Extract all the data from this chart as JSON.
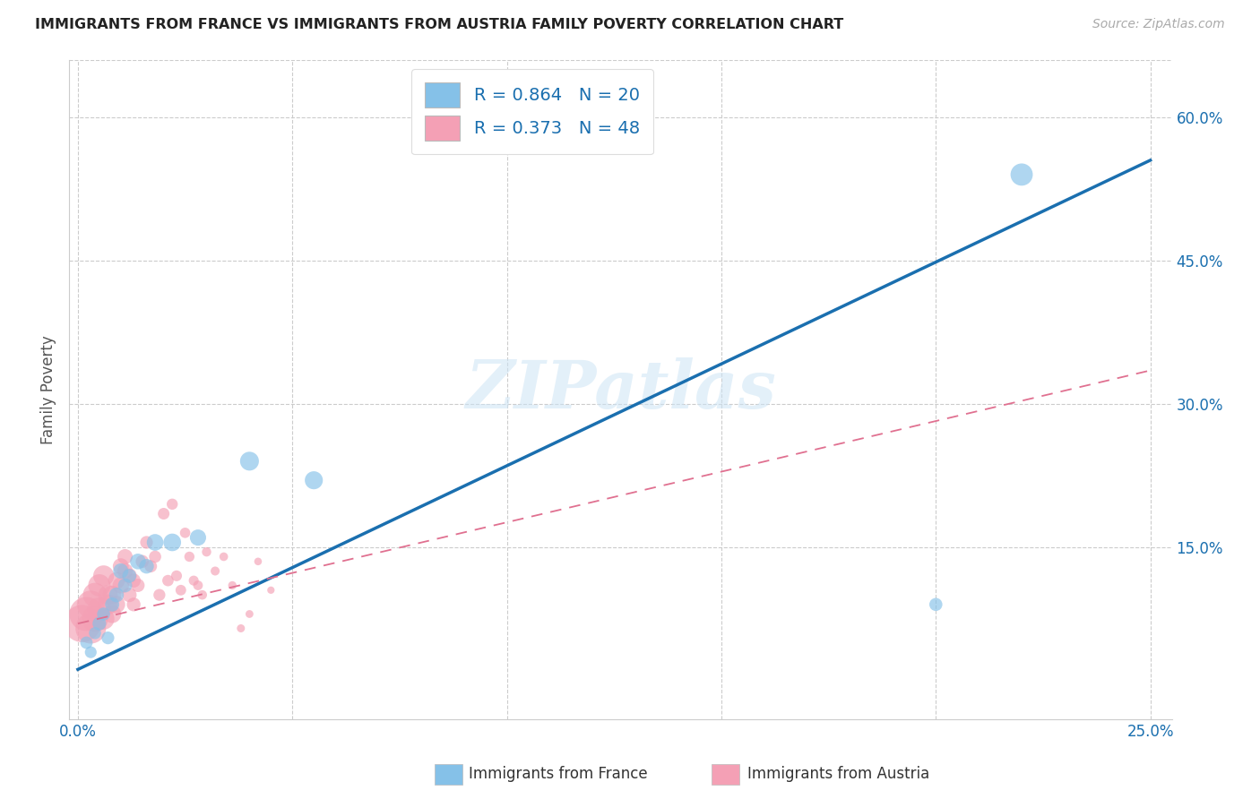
{
  "title": "IMMIGRANTS FROM FRANCE VS IMMIGRANTS FROM AUSTRIA FAMILY POVERTY CORRELATION CHART",
  "source": "Source: ZipAtlas.com",
  "ylabel": "Family Poverty",
  "xlim": [
    -0.002,
    0.255
  ],
  "ylim": [
    -0.03,
    0.66
  ],
  "y_ticks": [
    0.15,
    0.3,
    0.45,
    0.6
  ],
  "y_tick_labels": [
    "15.0%",
    "30.0%",
    "45.0%",
    "60.0%"
  ],
  "x_ticks": [
    0.0,
    0.05,
    0.1,
    0.15,
    0.2,
    0.25
  ],
  "x_tick_labels": [
    "0.0%",
    "",
    "",
    "",
    "",
    "25.0%"
  ],
  "france_color": "#85C1E8",
  "austria_color": "#F4A0B5",
  "france_line_color": "#1A6FAF",
  "austria_line_color": "#E07090",
  "watermark": "ZIPatlas",
  "france_line_x0": 0.0,
  "france_line_y0": 0.022,
  "france_line_x1": 0.25,
  "france_line_y1": 0.555,
  "austria_line_x0": 0.0,
  "austria_line_y0": 0.07,
  "austria_line_x1": 0.25,
  "austria_line_y1": 0.335,
  "france_x": [
    0.002,
    0.003,
    0.004,
    0.005,
    0.006,
    0.007,
    0.008,
    0.009,
    0.01,
    0.011,
    0.012,
    0.014,
    0.016,
    0.018,
    0.022,
    0.028,
    0.04,
    0.055,
    0.2,
    0.22
  ],
  "france_y": [
    0.05,
    0.04,
    0.06,
    0.07,
    0.08,
    0.055,
    0.09,
    0.1,
    0.125,
    0.11,
    0.12,
    0.135,
    0.13,
    0.155,
    0.155,
    0.16,
    0.24,
    0.22,
    0.09,
    0.54
  ],
  "france_s": [
    100,
    90,
    95,
    120,
    110,
    105,
    130,
    140,
    150,
    130,
    125,
    160,
    140,
    180,
    200,
    170,
    230,
    210,
    110,
    320
  ],
  "austria_x": [
    0.001,
    0.002,
    0.003,
    0.003,
    0.004,
    0.004,
    0.005,
    0.005,
    0.006,
    0.006,
    0.007,
    0.007,
    0.008,
    0.008,
    0.009,
    0.009,
    0.01,
    0.01,
    0.011,
    0.011,
    0.012,
    0.012,
    0.013,
    0.013,
    0.014,
    0.015,
    0.016,
    0.017,
    0.018,
    0.019,
    0.02,
    0.021,
    0.022,
    0.023,
    0.024,
    0.025,
    0.026,
    0.027,
    0.028,
    0.029,
    0.03,
    0.032,
    0.034,
    0.036,
    0.038,
    0.04,
    0.042,
    0.045
  ],
  "austria_y": [
    0.07,
    0.08,
    0.065,
    0.09,
    0.075,
    0.1,
    0.085,
    0.11,
    0.075,
    0.12,
    0.09,
    0.1,
    0.1,
    0.08,
    0.09,
    0.115,
    0.11,
    0.13,
    0.125,
    0.14,
    0.12,
    0.1,
    0.115,
    0.09,
    0.11,
    0.135,
    0.155,
    0.13,
    0.14,
    0.1,
    0.185,
    0.115,
    0.195,
    0.12,
    0.105,
    0.165,
    0.14,
    0.115,
    0.11,
    0.1,
    0.145,
    0.125,
    0.14,
    0.11,
    0.065,
    0.08,
    0.135,
    0.105
  ],
  "austria_s": [
    900,
    750,
    600,
    500,
    440,
    380,
    360,
    320,
    300,
    280,
    265,
    245,
    225,
    210,
    195,
    185,
    175,
    165,
    158,
    150,
    143,
    136,
    129,
    122,
    116,
    110,
    105,
    100,
    96,
    92,
    88,
    84,
    80,
    76,
    73,
    70,
    67,
    64,
    61,
    58,
    56,
    52,
    48,
    45,
    42,
    40,
    38,
    35
  ]
}
